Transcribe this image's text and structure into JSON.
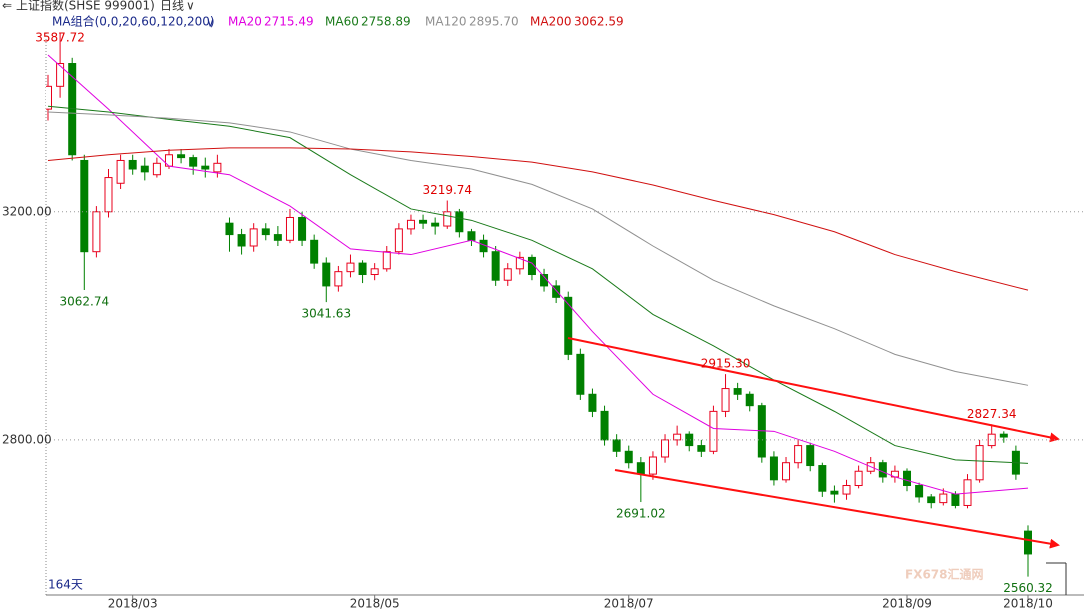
{
  "header": {
    "symbol": "上证指数(SHSE 999001)",
    "period": "日线"
  },
  "chart_data": {
    "type": "candlestick",
    "ma_title": "MA组合(0,0,20,60,120,200)",
    "days_label": "164天",
    "watermark": "FX678汇通网",
    "up_color": "#e8001c",
    "down_color": "#008000",
    "ylim": [
      2528,
      3510
    ],
    "yticks": [
      {
        "value": 3200,
        "label": "3200.00"
      },
      {
        "value": 2800,
        "label": "2800.00"
      }
    ],
    "grid": true,
    "xticks": [
      {
        "value": 7,
        "label": "2018/03"
      },
      {
        "value": 27,
        "label": "2018/05"
      },
      {
        "value": 48,
        "label": "2018/07"
      },
      {
        "value": 71,
        "label": "2018/09"
      },
      {
        "value": 81,
        "label": "2018/10"
      }
    ],
    "open": [
      3380,
      3420,
      3460,
      3290,
      3130,
      3200,
      3250,
      3290,
      3280,
      3265,
      3280,
      3300,
      3295,
      3280,
      3270,
      3180,
      3160,
      3140,
      3170,
      3160,
      3150,
      3190,
      3150,
      3110,
      3070,
      3095,
      3110,
      3090,
      3100,
      3130,
      3170,
      3185,
      3180,
      3175,
      3200,
      3165,
      3150,
      3130,
      3080,
      3100,
      3120,
      3090,
      3070,
      3050,
      2950,
      2880,
      2850,
      2800,
      2780,
      2760,
      2740,
      2770,
      2800,
      2810,
      2790,
      2780,
      2850,
      2890,
      2880,
      2860,
      2770,
      2730,
      2760,
      2790,
      2755,
      2710,
      2705,
      2720,
      2745,
      2760,
      2735,
      2745,
      2720,
      2700,
      2690,
      2705,
      2685,
      2730,
      2790,
      2810,
      2780,
      2640
    ],
    "high": [
      3440,
      3587.72,
      3470,
      3300,
      3210,
      3275,
      3300,
      3300,
      3295,
      3295,
      3310,
      3310,
      3300,
      3295,
      3300,
      3190,
      3170,
      3180,
      3180,
      3175,
      3205,
      3200,
      3160,
      3120,
      3105,
      3125,
      3115,
      3110,
      3140,
      3180,
      3195,
      3195,
      3190,
      3219.74,
      3205,
      3170,
      3160,
      3140,
      3110,
      3130,
      3125,
      3100,
      3080,
      3060,
      2960,
      2890,
      2860,
      2810,
      2790,
      2770,
      2780,
      2810,
      2825,
      2815,
      2800,
      2860,
      2915.3,
      2900,
      2885,
      2865,
      2780,
      2770,
      2800,
      2795,
      2760,
      2720,
      2730,
      2755,
      2770,
      2765,
      2755,
      2750,
      2725,
      2705,
      2715,
      2710,
      2740,
      2800,
      2827.34,
      2815,
      2790,
      2650
    ],
    "low": [
      3360,
      3400,
      3290,
      3062.74,
      3120,
      3190,
      3240,
      3265,
      3255,
      3260,
      3275,
      3285,
      3265,
      3260,
      3260,
      3130,
      3125,
      3130,
      3150,
      3140,
      3145,
      3140,
      3100,
      3041.63,
      3060,
      3085,
      3075,
      3080,
      3095,
      3125,
      3160,
      3170,
      3160,
      3170,
      3155,
      3140,
      3120,
      3070,
      3070,
      3090,
      3080,
      3060,
      3040,
      2940,
      2870,
      2840,
      2790,
      2770,
      2750,
      2691.02,
      2730,
      2760,
      2790,
      2780,
      2770,
      2775,
      2840,
      2870,
      2850,
      2760,
      2720,
      2725,
      2750,
      2745,
      2700,
      2690,
      2695,
      2715,
      2740,
      2725,
      2725,
      2710,
      2690,
      2680,
      2685,
      2680,
      2680,
      2725,
      2785,
      2795,
      2730,
      2560.32
    ],
    "close": [
      3420,
      3460,
      3300,
      3130,
      3200,
      3260,
      3290,
      3275,
      3270,
      3285,
      3300,
      3295,
      3280,
      3275,
      3285,
      3160,
      3140,
      3170,
      3160,
      3150,
      3190,
      3150,
      3110,
      3070,
      3095,
      3110,
      3090,
      3100,
      3130,
      3170,
      3185,
      3180,
      3175,
      3200,
      3165,
      3150,
      3130,
      3080,
      3100,
      3120,
      3090,
      3070,
      3050,
      2950,
      2880,
      2850,
      2800,
      2780,
      2760,
      2740,
      2770,
      2800,
      2810,
      2790,
      2780,
      2850,
      2890,
      2880,
      2860,
      2770,
      2730,
      2760,
      2790,
      2755,
      2710,
      2705,
      2720,
      2745,
      2760,
      2735,
      2745,
      2720,
      2700,
      2690,
      2705,
      2685,
      2730,
      2790,
      2810,
      2805,
      2740,
      2600
    ],
    "annotations": [
      {
        "label": "3587.72",
        "value": 3587.72
      },
      {
        "label": "3062.74",
        "value": 3062.74
      },
      {
        "label": "3041.63",
        "value": 3041.63
      },
      {
        "label": "3219.74",
        "value": 3219.74
      },
      {
        "label": "2691.02",
        "value": 2691.02
      },
      {
        "label": "2915.30",
        "value": 2915.3
      },
      {
        "label": "2827.34",
        "value": 2827.34
      },
      {
        "label": "2560.32",
        "value": 2560.32
      }
    ],
    "ma_x": [
      0,
      5,
      10,
      15,
      20,
      25,
      30,
      35,
      40,
      45,
      50,
      55,
      60,
      65,
      70,
      75,
      81
    ],
    "series": [
      {
        "name": "MA20",
        "legend_label": "2715.49",
        "color": "#e000e0",
        "values": [
          3475,
          3380,
          3280,
          3265,
          3210,
          3135,
          3125,
          3150,
          3110,
          2990,
          2880,
          2820,
          2815,
          2780,
          2735,
          2705,
          2715.49
        ]
      },
      {
        "name": "MA60",
        "legend_label": "2758.89",
        "color": "#1a7a1a",
        "values": [
          3385,
          3375,
          3362,
          3350,
          3330,
          3265,
          3205,
          3185,
          3150,
          3100,
          3020,
          2965,
          2905,
          2850,
          2790,
          2765,
          2758.89
        ]
      },
      {
        "name": "MA120",
        "legend_label": "2895.70",
        "color": "#909090",
        "values": [
          3375,
          3370,
          3364,
          3356,
          3340,
          3310,
          3290,
          3275,
          3248,
          3205,
          3140,
          3080,
          3035,
          2995,
          2950,
          2920,
          2895.7
        ]
      },
      {
        "name": "MA200",
        "legend_label": "3062.59",
        "color": "#d01010",
        "values": [
          3290,
          3300,
          3308,
          3312,
          3312,
          3310,
          3305,
          3297,
          3287,
          3270,
          3247,
          3220,
          3195,
          3165,
          3125,
          3095,
          3062.59
        ]
      }
    ]
  }
}
